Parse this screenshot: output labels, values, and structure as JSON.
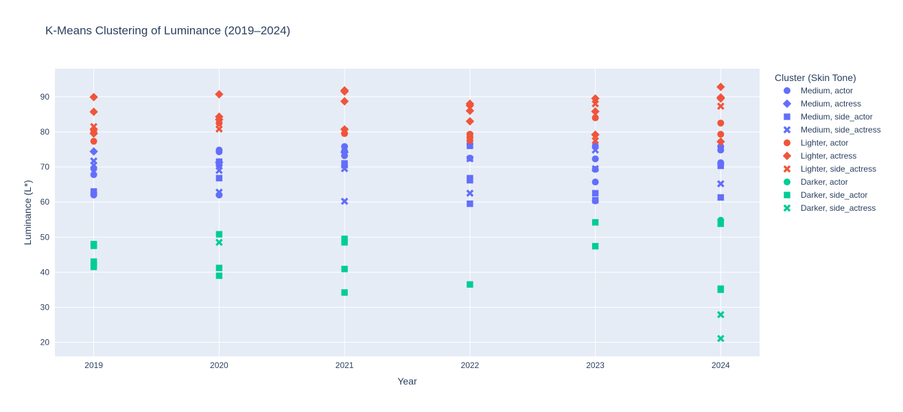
{
  "chart_data": {
    "type": "scatter",
    "title": "K-Means Clustering of Luminance (2019–2024)",
    "xlabel": "Year",
    "ylabel": "Luminance (L*)",
    "xticks": [
      "2019",
      "2020",
      "2021",
      "2022",
      "2023",
      "2024"
    ],
    "yticks": [
      20,
      30,
      40,
      50,
      60,
      70,
      80,
      90
    ],
    "xlim": [
      2018.69,
      2024.31
    ],
    "ylim": [
      16,
      98
    ],
    "grid": true,
    "legend_title": "Cluster (Skin Tone)",
    "legend_placement": "right",
    "colors": {
      "Medium": "#636efa",
      "Lighter": "#ef553b",
      "Darker": "#00cc96",
      "plot_bg": "#e5ecf6"
    },
    "series": [
      {
        "name": "Medium, actor",
        "cluster": "Medium",
        "symbol": "circle",
        "points": [
          [
            2019,
            62
          ],
          [
            2019,
            62.5
          ],
          [
            2019,
            67.8
          ],
          [
            2019,
            69.5
          ],
          [
            2020,
            62
          ],
          [
            2020,
            70.5
          ],
          [
            2020,
            74.3
          ],
          [
            2020,
            74.8
          ],
          [
            2021,
            73.2
          ],
          [
            2021,
            74.5
          ],
          [
            2021,
            75.8
          ],
          [
            2022,
            72.5
          ],
          [
            2022,
            76.5
          ],
          [
            2023,
            60.3
          ],
          [
            2023,
            65.7
          ],
          [
            2023,
            69.3
          ],
          [
            2023,
            72.3
          ],
          [
            2023,
            76
          ],
          [
            2024,
            70.8
          ],
          [
            2024,
            71.2
          ],
          [
            2024,
            74.8
          ],
          [
            2024,
            75.8
          ]
        ]
      },
      {
        "name": "Medium, actress",
        "cluster": "Medium",
        "symbol": "diamond",
        "points": [
          [
            2019,
            74.4
          ],
          [
            2020,
            71.3
          ],
          [
            2021,
            74.2
          ]
        ]
      },
      {
        "name": "Medium, side_actor",
        "cluster": "Medium",
        "symbol": "square",
        "points": [
          [
            2019,
            63
          ],
          [
            2020,
            66.8
          ],
          [
            2020,
            71.5
          ],
          [
            2021,
            70.5
          ],
          [
            2021,
            71
          ],
          [
            2022,
            59.5
          ],
          [
            2022,
            66.2
          ],
          [
            2022,
            66.8
          ],
          [
            2022,
            76
          ],
          [
            2023,
            60.5
          ],
          [
            2023,
            62.5
          ],
          [
            2024,
            61.3
          ],
          [
            2024,
            70.3
          ]
        ]
      },
      {
        "name": "Medium, side_actress",
        "cluster": "Medium",
        "symbol": "x",
        "points": [
          [
            2019,
            70.5
          ],
          [
            2019,
            71.7
          ],
          [
            2020,
            62.8
          ],
          [
            2020,
            69
          ],
          [
            2021,
            60.2
          ],
          [
            2021,
            69.5
          ],
          [
            2022,
            62.5
          ],
          [
            2022,
            72.3
          ],
          [
            2023,
            69.5
          ],
          [
            2023,
            74.8
          ],
          [
            2024,
            65.2
          ]
        ]
      },
      {
        "name": "Lighter, actor",
        "cluster": "Lighter",
        "symbol": "circle",
        "points": [
          [
            2019,
            77.3
          ],
          [
            2019,
            80
          ],
          [
            2020,
            82.5
          ],
          [
            2021,
            79.5
          ],
          [
            2022,
            77.5
          ],
          [
            2022,
            78.5
          ],
          [
            2022,
            79.3
          ],
          [
            2023,
            84
          ],
          [
            2024,
            79.3
          ],
          [
            2024,
            82.5
          ]
        ]
      },
      {
        "name": "Lighter, actress",
        "cluster": "Lighter",
        "symbol": "diamond",
        "points": [
          [
            2019,
            79.5
          ],
          [
            2019,
            80.7
          ],
          [
            2019,
            85.7
          ],
          [
            2019,
            89.9
          ],
          [
            2020,
            83.5
          ],
          [
            2020,
            84.3
          ],
          [
            2020,
            90.7
          ],
          [
            2021,
            80.7
          ],
          [
            2021,
            88.7
          ],
          [
            2021,
            91.5
          ],
          [
            2021,
            91.8
          ],
          [
            2022,
            83
          ],
          [
            2022,
            86
          ],
          [
            2022,
            87.5
          ],
          [
            2022,
            88
          ],
          [
            2023,
            79.2
          ],
          [
            2023,
            85.8
          ],
          [
            2023,
            89.5
          ],
          [
            2024,
            77.2
          ],
          [
            2024,
            89.5
          ],
          [
            2024,
            89.8
          ],
          [
            2024,
            92.8
          ]
        ]
      },
      {
        "name": "Lighter, side_actress",
        "cluster": "Lighter",
        "symbol": "x",
        "points": [
          [
            2019,
            81.5
          ],
          [
            2020,
            80.8
          ],
          [
            2021,
            80.3
          ],
          [
            2022,
            79
          ],
          [
            2023,
            77.5
          ],
          [
            2023,
            88
          ],
          [
            2024,
            87.3
          ]
        ]
      },
      {
        "name": "Darker, actor",
        "cluster": "Darker",
        "symbol": "circle",
        "points": [
          [
            2024,
            54.8
          ]
        ]
      },
      {
        "name": "Darker, side_actor",
        "cluster": "Darker",
        "symbol": "square",
        "points": [
          [
            2019,
            41.5
          ],
          [
            2019,
            42.3
          ],
          [
            2019,
            43
          ],
          [
            2019,
            47.5
          ],
          [
            2019,
            48
          ],
          [
            2020,
            39
          ],
          [
            2020,
            41.2
          ],
          [
            2020,
            50.8
          ],
          [
            2021,
            34.2
          ],
          [
            2021,
            40.9
          ],
          [
            2021,
            48.5
          ],
          [
            2021,
            49.5
          ],
          [
            2022,
            36.5
          ],
          [
            2023,
            47.4
          ],
          [
            2023,
            54.2
          ],
          [
            2024,
            35
          ],
          [
            2024,
            35.3
          ],
          [
            2024,
            53.8
          ]
        ]
      },
      {
        "name": "Darker, side_actress",
        "cluster": "Darker",
        "symbol": "x",
        "points": [
          [
            2020,
            48.5
          ],
          [
            2024,
            21.1
          ],
          [
            2024,
            27.9
          ]
        ]
      }
    ]
  }
}
